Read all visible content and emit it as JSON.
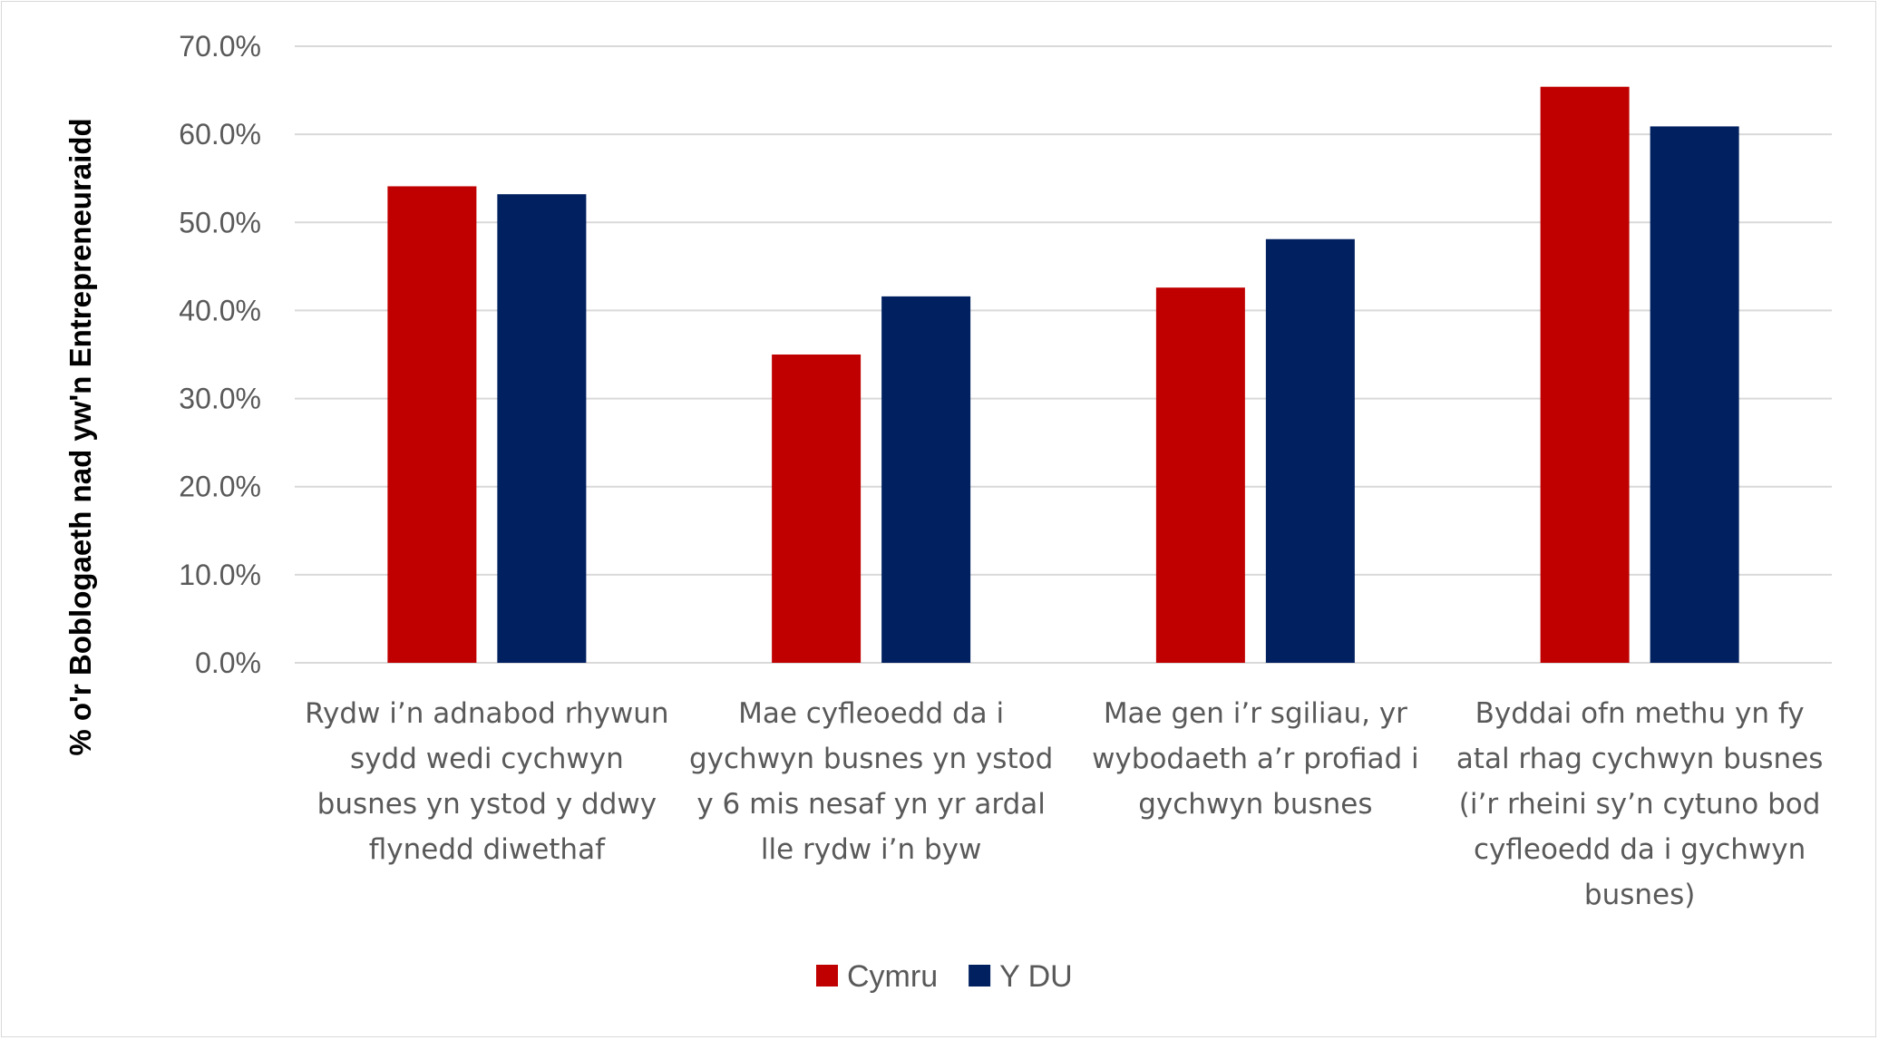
{
  "chart_data": {
    "type": "bar",
    "ylabel": "% o'r Boblogaeth nad yw'n  Entrepreneuraidd",
    "ylim": [
      0,
      70
    ],
    "y_ticks": [
      "0.0%",
      "10.0%",
      "20.0%",
      "30.0%",
      "40.0%",
      "50.0%",
      "60.0%",
      "70.0%"
    ],
    "grid": true,
    "legend_position": "bottom",
    "categories": [
      [
        "Rydw i’n adnabod rhywun",
        "sydd wedi cychwyn",
        "busnes yn ystod y ddwy",
        "flynedd diwethaf"
      ],
      [
        "Mae cyfleoedd da i",
        "gychwyn busnes yn ystod",
        "y 6 mis nesaf yn yr ardal",
        "lle rydw i’n byw"
      ],
      [
        "Mae gen i’r sgiliau, yr",
        "wybodaeth a’r profiad i",
        "gychwyn busnes"
      ],
      [
        "Byddai ofn methu yn fy",
        "atal rhag cychwyn busnes",
        "(i’r rheini sy’n cytuno bod",
        "cyfleoedd da i gychwyn",
        "busnes)"
      ]
    ],
    "series": [
      {
        "name": "Cymru",
        "color": "#c00000",
        "values": [
          54.1,
          35.0,
          42.6,
          65.4
        ]
      },
      {
        "name": "Y DU",
        "color": "#002060",
        "values": [
          53.2,
          41.6,
          48.1,
          60.9
        ]
      }
    ]
  }
}
